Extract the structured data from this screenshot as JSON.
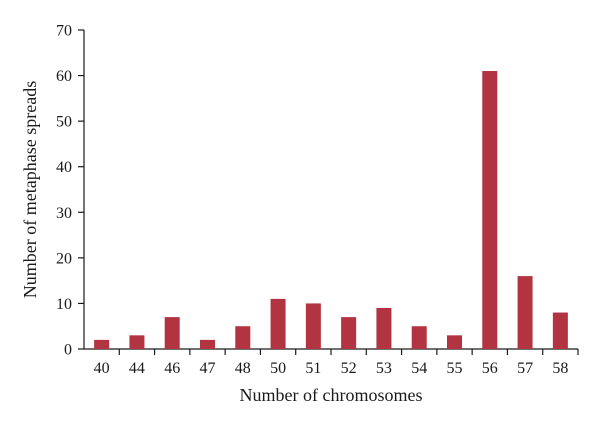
{
  "chart_data": {
    "type": "bar",
    "categories": [
      "40",
      "44",
      "46",
      "47",
      "48",
      "50",
      "51",
      "52",
      "53",
      "54",
      "55",
      "56",
      "57",
      "58"
    ],
    "values": [
      2,
      3,
      7,
      2,
      5,
      11,
      10,
      7,
      9,
      5,
      3,
      61,
      16,
      8
    ],
    "xlabel": "Number of chromosomes",
    "ylabel": "Number of metaphase spreads",
    "ylim": [
      0,
      70
    ],
    "yticks": [
      0,
      10,
      20,
      30,
      40,
      50,
      60,
      70
    ],
    "grid": false,
    "legend": "none",
    "bar_color": "#b23440"
  }
}
